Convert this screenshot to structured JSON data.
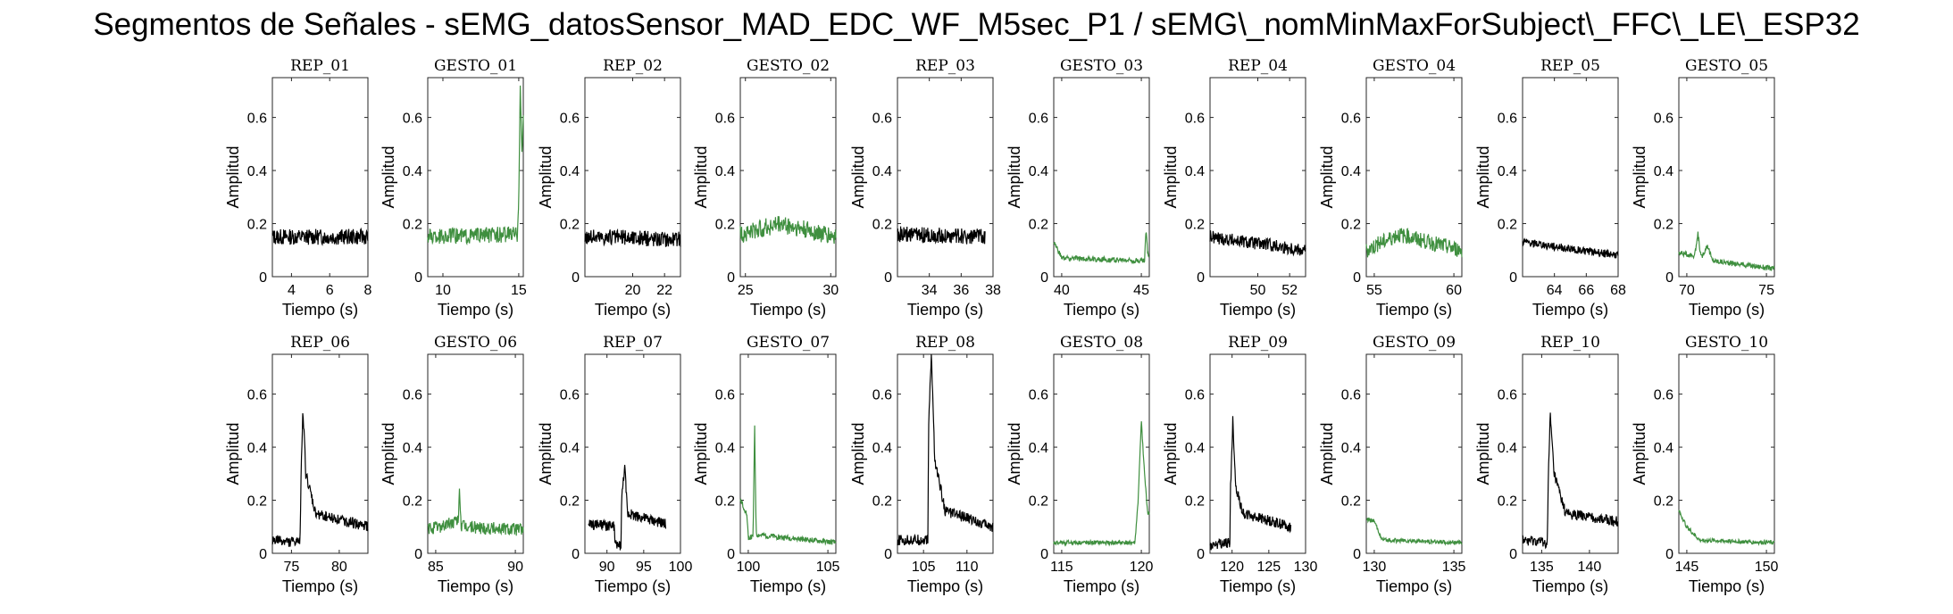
{
  "figure": {
    "title": "Segmentos de Señales - sEMG_datosSensor_MAD_EDC_WF_M5sec_P1 / sEMG\\_nomMinMaxForSubject\\_FFC\\_LE\\_ESP32"
  },
  "colors": {
    "rep": "#000000",
    "gesto": "#3f8f3f",
    "axis": "#262626"
  },
  "chart_data": [
    {
      "type": "line",
      "title": "REP_01",
      "xlabel": "Tiempo (s)",
      "ylabel": "Amplitud",
      "xlim": [
        3,
        8
      ],
      "ylim": [
        0,
        0.75
      ],
      "xticks": [
        4,
        6,
        8
      ],
      "yticks": [
        0,
        0.2,
        0.4,
        0.6
      ],
      "color": "black",
      "series": [
        {
          "x": [
            3.0,
            8.0
          ],
          "profile": [
            [
              3.0,
              0.15
            ],
            [
              8.0,
              0.15
            ]
          ],
          "noise": 0.03,
          "base": 0.15
        }
      ]
    },
    {
      "type": "line",
      "title": "GESTO_01",
      "xlabel": "Tiempo (s)",
      "ylabel": "Amplitud",
      "xlim": [
        9,
        15.3
      ],
      "ylim": [
        0,
        0.75
      ],
      "xticks": [
        10,
        15
      ],
      "yticks": [
        0,
        0.2,
        0.4,
        0.6
      ],
      "color": "green",
      "series": [
        {
          "x": [
            9.0,
            15.3
          ],
          "profile": [
            [
              9.0,
              0.15
            ],
            [
              14.9,
              0.16
            ],
            [
              15.0,
              0.3
            ],
            [
              15.1,
              0.72
            ],
            [
              15.2,
              0.45
            ],
            [
              15.3,
              0.6
            ]
          ],
          "noise": 0.03
        }
      ]
    },
    {
      "type": "line",
      "title": "REP_02",
      "xlabel": "Tiempo (s)",
      "ylabel": "Amplitud",
      "xlim": [
        17,
        23
      ],
      "ylim": [
        0,
        0.75
      ],
      "xticks": [
        20,
        22
      ],
      "yticks": [
        0,
        0.2,
        0.4,
        0.6
      ],
      "color": "black",
      "series": [
        {
          "x": [
            17.0,
            23.0
          ],
          "profile": [
            [
              17.0,
              0.15
            ],
            [
              23.0,
              0.14
            ]
          ],
          "noise": 0.03
        }
      ]
    },
    {
      "type": "line",
      "title": "GESTO_02",
      "xlabel": "Tiempo (s)",
      "ylabel": "Amplitud",
      "xlim": [
        24.7,
        30.3
      ],
      "ylim": [
        0,
        0.75
      ],
      "xticks": [
        25,
        30
      ],
      "yticks": [
        0,
        0.2,
        0.4,
        0.6
      ],
      "color": "green",
      "series": [
        {
          "x": [
            24.7,
            30.3
          ],
          "profile": [
            [
              24.7,
              0.16
            ],
            [
              27.0,
              0.2
            ],
            [
              30.3,
              0.15
            ]
          ],
          "noise": 0.035
        }
      ]
    },
    {
      "type": "line",
      "title": "REP_03",
      "xlabel": "Tiempo (s)",
      "ylabel": "Amplitud",
      "xlim": [
        32,
        38
      ],
      "ylim": [
        0,
        0.75
      ],
      "xticks": [
        34,
        36,
        38
      ],
      "yticks": [
        0,
        0.2,
        0.4,
        0.6
      ],
      "color": "black",
      "series": [
        {
          "x": [
            32.0,
            37.5
          ],
          "profile": [
            [
              32.0,
              0.16
            ],
            [
              37.5,
              0.15
            ]
          ],
          "noise": 0.03
        }
      ]
    },
    {
      "type": "line",
      "title": "GESTO_03",
      "xlabel": "Tiempo (s)",
      "ylabel": "Amplitud",
      "xlim": [
        39.5,
        45.5
      ],
      "ylim": [
        0,
        0.75
      ],
      "xticks": [
        40,
        45
      ],
      "yticks": [
        0,
        0.2,
        0.4,
        0.6
      ],
      "color": "green",
      "series": [
        {
          "x": [
            39.5,
            45.5
          ],
          "profile": [
            [
              39.5,
              0.13
            ],
            [
              40.0,
              0.07
            ],
            [
              45.2,
              0.06
            ],
            [
              45.3,
              0.18
            ],
            [
              45.4,
              0.08
            ]
          ],
          "noise": 0.01
        }
      ]
    },
    {
      "type": "line",
      "title": "REP_04",
      "xlabel": "Tiempo (s)",
      "ylabel": "Amplitud",
      "xlim": [
        47,
        53
      ],
      "ylim": [
        0,
        0.75
      ],
      "xticks": [
        50,
        52
      ],
      "yticks": [
        0,
        0.2,
        0.4,
        0.6
      ],
      "color": "black",
      "series": [
        {
          "x": [
            47.0,
            53.0
          ],
          "profile": [
            [
              47.0,
              0.15
            ],
            [
              53.0,
              0.1
            ]
          ],
          "noise": 0.025
        }
      ]
    },
    {
      "type": "line",
      "title": "GESTO_04",
      "xlabel": "Tiempo (s)",
      "ylabel": "Amplitud",
      "xlim": [
        54.5,
        60.5
      ],
      "ylim": [
        0,
        0.75
      ],
      "xticks": [
        55,
        60
      ],
      "yticks": [
        0,
        0.2,
        0.4,
        0.6
      ],
      "color": "green",
      "series": [
        {
          "x": [
            54.5,
            60.5
          ],
          "profile": [
            [
              54.5,
              0.1
            ],
            [
              56.5,
              0.16
            ],
            [
              60.5,
              0.1
            ]
          ],
          "noise": 0.03
        }
      ]
    },
    {
      "type": "line",
      "title": "REP_05",
      "xlabel": "Tiempo (s)",
      "ylabel": "Amplitud",
      "xlim": [
        62,
        68
      ],
      "ylim": [
        0,
        0.75
      ],
      "xticks": [
        64,
        66,
        68
      ],
      "yticks": [
        0,
        0.2,
        0.4,
        0.6
      ],
      "color": "black",
      "series": [
        {
          "x": [
            62.0,
            68.0
          ],
          "profile": [
            [
              62.0,
              0.13
            ],
            [
              68.0,
              0.08
            ]
          ],
          "noise": 0.015
        }
      ]
    },
    {
      "type": "line",
      "title": "GESTO_05",
      "xlabel": "Tiempo (s)",
      "ylabel": "Amplitud",
      "xlim": [
        69.5,
        75.5
      ],
      "ylim": [
        0,
        0.75
      ],
      "xticks": [
        70,
        75
      ],
      "yticks": [
        0,
        0.2,
        0.4,
        0.6
      ],
      "color": "green",
      "series": [
        {
          "x": [
            69.5,
            75.5
          ],
          "profile": [
            [
              69.5,
              0.09
            ],
            [
              70.5,
              0.08
            ],
            [
              70.7,
              0.16
            ],
            [
              70.9,
              0.07
            ],
            [
              71.3,
              0.12
            ],
            [
              71.6,
              0.06
            ],
            [
              75.5,
              0.03
            ]
          ],
          "noise": 0.01
        }
      ]
    },
    {
      "type": "line",
      "title": "REP_06",
      "xlabel": "Tiempo (s)",
      "ylabel": "Amplitud",
      "xlim": [
        73,
        83
      ],
      "ylim": [
        0,
        0.75
      ],
      "xticks": [
        75,
        80
      ],
      "yticks": [
        0,
        0.2,
        0.4,
        0.6
      ],
      "color": "black",
      "series": [
        {
          "x": [
            73.0,
            83.0
          ],
          "profile": [
            [
              73.0,
              0.05
            ],
            [
              75.9,
              0.04
            ],
            [
              76.0,
              0.3
            ],
            [
              76.2,
              0.55
            ],
            [
              76.5,
              0.3
            ],
            [
              77.5,
              0.15
            ],
            [
              83.0,
              0.1
            ]
          ],
          "noise": 0.02
        }
      ]
    },
    {
      "type": "line",
      "title": "GESTO_06",
      "xlabel": "Tiempo (s)",
      "ylabel": "Amplitud",
      "xlim": [
        84.5,
        90.5
      ],
      "ylim": [
        0,
        0.75
      ],
      "xticks": [
        85,
        90
      ],
      "yticks": [
        0,
        0.2,
        0.4,
        0.6
      ],
      "color": "green",
      "series": [
        {
          "x": [
            84.5,
            90.5
          ],
          "profile": [
            [
              84.5,
              0.09
            ],
            [
              86.4,
              0.12
            ],
            [
              86.5,
              0.24
            ],
            [
              86.6,
              0.1
            ],
            [
              90.5,
              0.09
            ]
          ],
          "noise": 0.025
        }
      ]
    },
    {
      "type": "line",
      "title": "REP_07",
      "xlabel": "Tiempo (s)",
      "ylabel": "Amplitud",
      "xlim": [
        87,
        100
      ],
      "ylim": [
        0,
        0.75
      ],
      "xticks": [
        90,
        95,
        100
      ],
      "yticks": [
        0,
        0.2,
        0.4,
        0.6
      ],
      "color": "black",
      "series": [
        {
          "x": [
            87.5,
            98.0
          ],
          "profile": [
            [
              87.5,
              0.11
            ],
            [
              91.0,
              0.1
            ],
            [
              91.1,
              0.03
            ],
            [
              91.9,
              0.03
            ],
            [
              92.0,
              0.2
            ],
            [
              92.4,
              0.33
            ],
            [
              92.8,
              0.15
            ],
            [
              98.0,
              0.11
            ]
          ],
          "noise": 0.02
        }
      ]
    },
    {
      "type": "line",
      "title": "GESTO_07",
      "xlabel": "Tiempo (s)",
      "ylabel": "Amplitud",
      "xlim": [
        99.5,
        105.5
      ],
      "ylim": [
        0,
        0.75
      ],
      "xticks": [
        100,
        105
      ],
      "yticks": [
        0,
        0.2,
        0.4,
        0.6
      ],
      "color": "green",
      "series": [
        {
          "x": [
            99.5,
            105.5
          ],
          "profile": [
            [
              99.5,
              0.2
            ],
            [
              99.9,
              0.15
            ],
            [
              100.0,
              0.06
            ],
            [
              100.3,
              0.06
            ],
            [
              100.4,
              0.48
            ],
            [
              100.5,
              0.07
            ],
            [
              105.5,
              0.04
            ]
          ],
          "noise": 0.01
        }
      ]
    },
    {
      "type": "line",
      "title": "REP_08",
      "xlabel": "Tiempo (s)",
      "ylabel": "Amplitud",
      "xlim": [
        102,
        113
      ],
      "ylim": [
        0,
        0.75
      ],
      "xticks": [
        105,
        110
      ],
      "yticks": [
        0,
        0.2,
        0.4,
        0.6
      ],
      "color": "black",
      "series": [
        {
          "x": [
            102.0,
            113.0
          ],
          "profile": [
            [
              102.0,
              0.05
            ],
            [
              105.5,
              0.05
            ],
            [
              105.6,
              0.5
            ],
            [
              105.9,
              0.75
            ],
            [
              106.3,
              0.35
            ],
            [
              107.5,
              0.16
            ],
            [
              113.0,
              0.1
            ]
          ],
          "noise": 0.02
        }
      ]
    },
    {
      "type": "line",
      "title": "GESTO_08",
      "xlabel": "Tiempo (s)",
      "ylabel": "Amplitud",
      "xlim": [
        114.5,
        120.5
      ],
      "ylim": [
        0,
        0.75
      ],
      "xticks": [
        115,
        120
      ],
      "yticks": [
        0,
        0.2,
        0.4,
        0.6
      ],
      "color": "green",
      "series": [
        {
          "x": [
            114.5,
            120.5
          ],
          "profile": [
            [
              114.5,
              0.04
            ],
            [
              119.6,
              0.04
            ],
            [
              119.8,
              0.2
            ],
            [
              120.0,
              0.5
            ],
            [
              120.2,
              0.3
            ],
            [
              120.4,
              0.15
            ]
          ],
          "noise": 0.008
        }
      ]
    },
    {
      "type": "line",
      "title": "REP_09",
      "xlabel": "Tiempo (s)",
      "ylabel": "Amplitud",
      "xlim": [
        117,
        130
      ],
      "ylim": [
        0,
        0.75
      ],
      "xticks": [
        120,
        125,
        130
      ],
      "yticks": [
        0,
        0.2,
        0.4,
        0.6
      ],
      "color": "black",
      "series": [
        {
          "x": [
            117.0,
            128.0
          ],
          "profile": [
            [
              117.0,
              0.03
            ],
            [
              119.7,
              0.04
            ],
            [
              119.8,
              0.25
            ],
            [
              120.1,
              0.5
            ],
            [
              120.5,
              0.25
            ],
            [
              121.5,
              0.15
            ],
            [
              128.0,
              0.1
            ]
          ],
          "noise": 0.02
        }
      ]
    },
    {
      "type": "line",
      "title": "GESTO_09",
      "xlabel": "Tiempo (s)",
      "ylabel": "Amplitud",
      "xlim": [
        129.5,
        135.5
      ],
      "ylim": [
        0,
        0.75
      ],
      "xticks": [
        130,
        135
      ],
      "yticks": [
        0,
        0.2,
        0.4,
        0.6
      ],
      "color": "green",
      "series": [
        {
          "x": [
            129.5,
            135.5
          ],
          "profile": [
            [
              129.5,
              0.13
            ],
            [
              130.0,
              0.12
            ],
            [
              130.5,
              0.05
            ],
            [
              135.5,
              0.04
            ]
          ],
          "noise": 0.008
        }
      ]
    },
    {
      "type": "line",
      "title": "REP_10",
      "xlabel": "Tiempo (s)",
      "ylabel": "Amplitud",
      "xlim": [
        133,
        143
      ],
      "ylim": [
        0,
        0.75
      ],
      "xticks": [
        135,
        140
      ],
      "yticks": [
        0,
        0.2,
        0.4,
        0.6
      ],
      "color": "black",
      "series": [
        {
          "x": [
            133.0,
            143.0
          ],
          "profile": [
            [
              133.0,
              0.05
            ],
            [
              135.6,
              0.04
            ],
            [
              135.7,
              0.3
            ],
            [
              135.9,
              0.52
            ],
            [
              136.3,
              0.3
            ],
            [
              137.5,
              0.15
            ],
            [
              143.0,
              0.12
            ]
          ],
          "noise": 0.02
        }
      ]
    },
    {
      "type": "line",
      "title": "GESTO_10",
      "xlabel": "Tiempo (s)",
      "ylabel": "Amplitud",
      "xlim": [
        144.5,
        150.5
      ],
      "ylim": [
        0,
        0.75
      ],
      "xticks": [
        145,
        150
      ],
      "yticks": [
        0,
        0.2,
        0.4,
        0.6
      ],
      "color": "green",
      "series": [
        {
          "x": [
            144.5,
            150.5
          ],
          "profile": [
            [
              144.5,
              0.16
            ],
            [
              145.0,
              0.1
            ],
            [
              145.8,
              0.05
            ],
            [
              150.5,
              0.04
            ]
          ],
          "noise": 0.008
        }
      ]
    }
  ]
}
